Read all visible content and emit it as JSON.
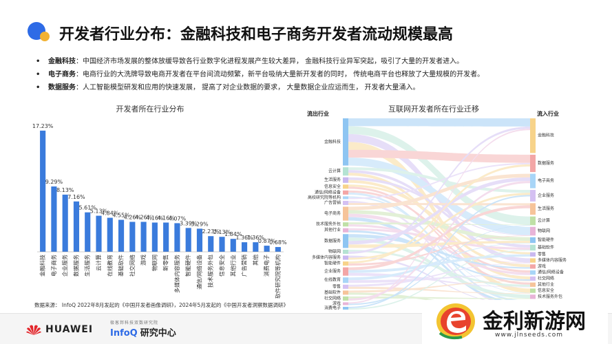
{
  "title": "开发者行业分布：金融科技和电子商务开发者流动规模最高",
  "bullets": [
    {
      "marker": "•",
      "label": "金融科技",
      "text": "：中国经济市场发展的整体放缓导致各行业数字化进程发展产生较大差异，  金融科技行业异军突起，吸引了大量的开发者进入。"
    },
    {
      "marker": "•",
      "label": "电子商务",
      "text": "：电商行业的大洗牌导致电商开发者在平台间流动频繁，新平台吸纳大量新开发者的同时，  传统电商平台也释放了大量规模的开发者。"
    },
    {
      "marker": "•",
      "label": "数据服务",
      "text": "：人工智能模型研发和应用的快速发展，  提高了对企业数据的要求，  大量数据企业应运而生，  开发者大量涌入。"
    }
  ],
  "chart_data": [
    {
      "type": "bar",
      "title": "开发者所在行业分布",
      "categories": [
        "金融科技",
        "电子商务",
        "企业服务",
        "数据服务",
        "生活服务",
        "云计算",
        "在线教育",
        "基础软件",
        "社交网络",
        "游戏",
        "物联网",
        "新零售",
        "多媒体内容服务",
        "智能硬件",
        "通信/网络设备",
        "技术服务外包",
        "信息安全",
        "其他行业",
        "广告营销",
        "其他",
        "消费电子",
        "软件研究院等机构"
      ],
      "values": [
        17.23,
        9.29,
        8.13,
        7.16,
        5.61,
        5.13,
        4.84,
        4.55,
        4.26,
        4.26,
        4.16,
        4.16,
        4.07,
        3.39,
        3.29,
        2.23,
        2.13,
        1.84,
        1.36,
        1.36,
        0.87,
        0.68
      ],
      "value_labels": [
        "17.23%",
        "9.29%",
        "8.13%",
        "7.16%",
        "5.61%",
        "5.13%",
        "4.84%",
        "4.55%",
        "4.26%",
        "4.26%",
        "4.16%",
        "4.16%",
        "4.07%",
        "3.39%",
        "3.29%",
        "2.23%",
        "2.13%",
        "1.84%",
        "1.36%",
        "1.36%",
        "0.87%",
        "0.68%"
      ],
      "ylim": [
        0,
        18
      ],
      "color": "#3a7bdc",
      "grid": false
    },
    {
      "type": "sankey",
      "title": "互联网开发者所在行业迁移",
      "source_header": "流出行业",
      "target_header": "流入行业",
      "sources": [
        "金融科技",
        "云计算",
        "生活服务",
        "信息安全",
        "通信/网络设备",
        "高校研究院等机构",
        "广告营销",
        "电子商务",
        "技术服务外包",
        "其他行业",
        "数据服务",
        "物联网",
        "多媒体内容服务",
        "智能硬件",
        "企业服务",
        "在线教育",
        "零售",
        "基础软件",
        "社交网络",
        "游戏",
        "消费电子"
      ],
      "source_weights": [
        17,
        3,
        2,
        1.5,
        1.5,
        1,
        1.5,
        5,
        1.5,
        1.5,
        5,
        1.5,
        1.5,
        1.5,
        3,
        2,
        1.5,
        1.5,
        1.5,
        1,
        1
      ],
      "targets": [
        "金融科技",
        "数据服务",
        "电子商务",
        "企业服务",
        "生活服务",
        "云计算",
        "物联网",
        "智能硬件",
        "基础软件",
        "零售",
        "多媒体内容服务",
        "游戏",
        "通信/网络设备",
        "社交网络",
        "其他行业",
        "信息安全",
        "技术服务外包",
        "在线教育",
        "高校研究院等机构"
      ],
      "target_weights": [
        12,
        6,
        5,
        4,
        4,
        3,
        3,
        2,
        2,
        1.5,
        1.5,
        1.5,
        1.5,
        1.5,
        1.5,
        1.5,
        1.5,
        1.5,
        1
      ]
    }
  ],
  "source_note": "数据来源：  InfoQ  2022年8月发起的《中国开发者画像调研》，2024年5月发起的《中国开发者洞察数据调研》",
  "footer": {
    "huawei": "HUAWEI",
    "infoq_tagline": "极客邦科技双数研究院",
    "infoq_name": "InfoQ",
    "infoq_suffix": "研究中心"
  },
  "watermark": {
    "title": "金利新游网",
    "url": "www.jlnseeds.com"
  },
  "colors": {
    "accent": "#2e6be6",
    "bar": "#3a7bdc",
    "sankey_palette": [
      "#8ec5f2",
      "#b5e3d3",
      "#c9b8f0",
      "#f7d38a",
      "#f3a6a6",
      "#a8d5f7",
      "#d4c0f2",
      "#f6c49a",
      "#bfe0a6",
      "#e8b4d8"
    ]
  }
}
